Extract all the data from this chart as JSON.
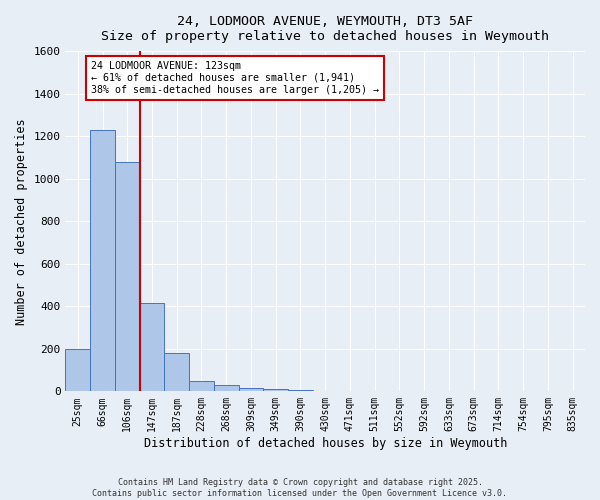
{
  "title_line1": "24, LODMOOR AVENUE, WEYMOUTH, DT3 5AF",
  "title_line2": "Size of property relative to detached houses in Weymouth",
  "xlabel": "Distribution of detached houses by size in Weymouth",
  "ylabel": "Number of detached properties",
  "categories": [
    "25sqm",
    "66sqm",
    "106sqm",
    "147sqm",
    "187sqm",
    "228sqm",
    "268sqm",
    "309sqm",
    "349sqm",
    "390sqm",
    "430sqm",
    "471sqm",
    "511sqm",
    "552sqm",
    "592sqm",
    "633sqm",
    "673sqm",
    "714sqm",
    "754sqm",
    "795sqm",
    "835sqm"
  ],
  "values": [
    200,
    1230,
    1080,
    415,
    180,
    50,
    28,
    18,
    10,
    8,
    0,
    0,
    0,
    0,
    0,
    0,
    0,
    0,
    0,
    0,
    0
  ],
  "bar_color": "#aec6e8",
  "bar_edge_color": "#4472c4",
  "fig_bg_color": "#e8eef5",
  "plot_bg_color": "#e8eef5",
  "grid_color": "#ffffff",
  "red_line_x": 2.5,
  "annotation_text": "24 LODMOOR AVENUE: 123sqm\n← 61% of detached houses are smaller (1,941)\n38% of semi-detached houses are larger (1,205) →",
  "annotation_box_color": "#ffffff",
  "annotation_box_edge": "#cc0000",
  "ylim": [
    0,
    1600
  ],
  "yticks": [
    0,
    200,
    400,
    600,
    800,
    1000,
    1200,
    1400,
    1600
  ],
  "footer": "Contains HM Land Registry data © Crown copyright and database right 2025.\nContains public sector information licensed under the Open Government Licence v3.0."
}
